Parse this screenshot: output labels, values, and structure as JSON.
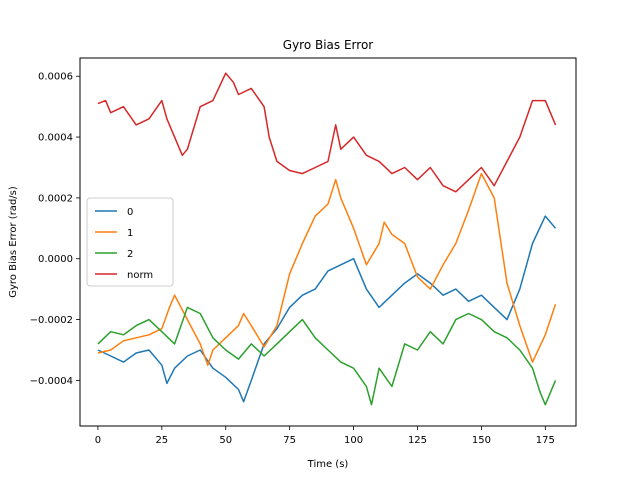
{
  "chart_data": {
    "type": "line",
    "title": "Gyro Bias Error",
    "xlabel": "Time (s)",
    "ylabel": "Gyro Bias Error (rad/s)",
    "xlim": [
      -7,
      187
    ],
    "ylim": [
      -0.00055,
      0.00066
    ],
    "x_ticks": [
      0,
      25,
      50,
      75,
      100,
      125,
      150,
      175
    ],
    "y_ticks": [
      -0.0004,
      -0.0002,
      0.0,
      0.0002,
      0.0004,
      0.0006
    ],
    "y_tick_labels": [
      "−0.0004",
      "−0.0002",
      "0.0000",
      "0.0002",
      "0.0004",
      "0.0006"
    ],
    "grid": false,
    "legend_position": "center-left",
    "series": [
      {
        "name": "0",
        "color": "#1f77b4",
        "x": [
          0,
          5,
          10,
          15,
          20,
          25,
          27,
          30,
          35,
          40,
          45,
          50,
          55,
          57,
          60,
          65,
          70,
          75,
          80,
          85,
          90,
          95,
          100,
          105,
          110,
          115,
          120,
          125,
          130,
          135,
          140,
          145,
          150,
          155,
          160,
          165,
          170,
          175,
          179
        ],
        "y": [
          -0.0003,
          -0.00032,
          -0.00034,
          -0.00031,
          -0.0003,
          -0.00035,
          -0.00041,
          -0.00036,
          -0.00032,
          -0.0003,
          -0.00036,
          -0.00039,
          -0.00043,
          -0.00047,
          -0.0004,
          -0.00028,
          -0.00023,
          -0.00016,
          -0.00012,
          -0.0001,
          -4e-05,
          -2e-05,
          0.0,
          -0.0001,
          -0.00016,
          -0.00012,
          -8e-05,
          -5e-05,
          -8e-05,
          -0.00012,
          -0.0001,
          -0.00014,
          -0.00012,
          -0.00016,
          -0.0002,
          -0.0001,
          5e-05,
          0.00014,
          0.0001
        ]
      },
      {
        "name": "1",
        "color": "#ff7f0e",
        "x": [
          0,
          5,
          10,
          15,
          20,
          25,
          28,
          30,
          35,
          40,
          43,
          45,
          50,
          55,
          57,
          60,
          65,
          70,
          75,
          80,
          85,
          90,
          93,
          95,
          100,
          105,
          110,
          112,
          115,
          120,
          125,
          130,
          135,
          140,
          145,
          150,
          155,
          160,
          165,
          170,
          175,
          179
        ],
        "y": [
          -0.00031,
          -0.0003,
          -0.00027,
          -0.00026,
          -0.00025,
          -0.00023,
          -0.00016,
          -0.00012,
          -0.0002,
          -0.00028,
          -0.00035,
          -0.0003,
          -0.00026,
          -0.00022,
          -0.00018,
          -0.00022,
          -0.00029,
          -0.00022,
          -5e-05,
          5e-05,
          0.00014,
          0.00018,
          0.00026,
          0.0002,
          0.0001,
          -2e-05,
          5e-05,
          0.00012,
          8e-05,
          5e-05,
          -6e-05,
          -0.0001,
          -2e-05,
          5e-05,
          0.00016,
          0.00028,
          0.0002,
          -8e-05,
          -0.00022,
          -0.00034,
          -0.00025,
          -0.00015
        ]
      },
      {
        "name": "2",
        "color": "#2ca02c",
        "x": [
          0,
          5,
          10,
          15,
          20,
          25,
          30,
          35,
          40,
          45,
          50,
          55,
          60,
          65,
          70,
          75,
          80,
          85,
          90,
          95,
          100,
          105,
          107,
          110,
          115,
          120,
          125,
          130,
          135,
          140,
          145,
          150,
          155,
          160,
          165,
          170,
          173,
          175,
          179
        ],
        "y": [
          -0.00028,
          -0.00024,
          -0.00025,
          -0.00022,
          -0.0002,
          -0.00024,
          -0.00028,
          -0.00016,
          -0.00018,
          -0.00026,
          -0.0003,
          -0.00033,
          -0.00028,
          -0.00032,
          -0.00028,
          -0.00024,
          -0.0002,
          -0.00026,
          -0.0003,
          -0.00034,
          -0.00036,
          -0.00042,
          -0.00048,
          -0.00036,
          -0.00042,
          -0.00028,
          -0.0003,
          -0.00024,
          -0.00028,
          -0.0002,
          -0.00018,
          -0.0002,
          -0.00024,
          -0.00026,
          -0.0003,
          -0.00036,
          -0.00044,
          -0.00048,
          -0.0004
        ]
      },
      {
        "name": "norm",
        "color": "#d62728",
        "x": [
          0,
          3,
          5,
          10,
          15,
          20,
          25,
          27,
          30,
          33,
          35,
          40,
          45,
          50,
          53,
          55,
          60,
          65,
          67,
          70,
          75,
          80,
          85,
          90,
          93,
          95,
          100,
          105,
          110,
          115,
          120,
          125,
          130,
          135,
          140,
          145,
          150,
          155,
          160,
          165,
          170,
          175,
          179
        ],
        "y": [
          0.00051,
          0.00052,
          0.00048,
          0.0005,
          0.00044,
          0.00046,
          0.00052,
          0.00046,
          0.0004,
          0.00034,
          0.00036,
          0.0005,
          0.00052,
          0.00061,
          0.00058,
          0.00054,
          0.00056,
          0.0005,
          0.0004,
          0.00032,
          0.00029,
          0.00028,
          0.0003,
          0.00032,
          0.00044,
          0.00036,
          0.0004,
          0.00034,
          0.00032,
          0.00028,
          0.0003,
          0.00026,
          0.0003,
          0.00024,
          0.00022,
          0.00026,
          0.0003,
          0.00024,
          0.00032,
          0.0004,
          0.00052,
          0.00052,
          0.00044
        ]
      }
    ]
  }
}
